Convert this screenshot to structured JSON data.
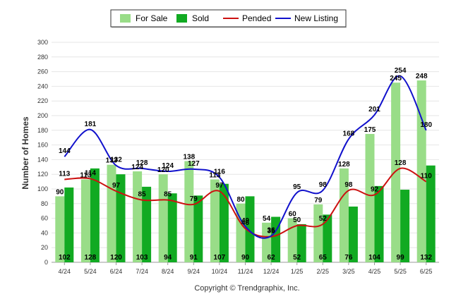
{
  "chart_data": {
    "type": "bar",
    "categories": [
      "4/24",
      "5/24",
      "6/24",
      "7/24",
      "8/24",
      "9/24",
      "10/24",
      "11/24",
      "12/24",
      "1/25",
      "2/25",
      "3/25",
      "4/25",
      "5/25",
      "6/25"
    ],
    "series": [
      {
        "name": "For Sale",
        "type": "bar",
        "color": "#99dd88",
        "values": [
          90,
          113,
          133,
          124,
          120,
          138,
          113,
          80,
          54,
          60,
          79,
          128,
          175,
          245,
          248
        ]
      },
      {
        "name": "Sold",
        "type": "bar",
        "color": "#11aa22",
        "values": [
          102,
          128,
          120,
          103,
          94,
          91,
          107,
          90,
          62,
          52,
          65,
          76,
          104,
          99,
          132
        ]
      },
      {
        "name": "Pended",
        "type": "line",
        "color": "#cc1111",
        "values": [
          113,
          114,
          97,
          85,
          85,
          79,
          97,
          46,
          35,
          50,
          52,
          98,
          92,
          128,
          110
        ]
      },
      {
        "name": "New Listing",
        "type": "line",
        "color": "#1111cc",
        "values": [
          144,
          181,
          132,
          128,
          124,
          127,
          116,
          49,
          36,
          95,
          98,
          168,
          201,
          254,
          180
        ]
      }
    ],
    "ylabel": "Number of Homes",
    "xlabel": "",
    "ylim": [
      0,
      300
    ],
    "yticks": [
      0,
      20,
      40,
      60,
      80,
      100,
      120,
      140,
      160,
      180,
      200,
      220,
      240,
      260,
      280,
      300
    ],
    "grid": true,
    "legend": "top-center",
    "credit": "Copyright © Trendgraphix, Inc."
  }
}
